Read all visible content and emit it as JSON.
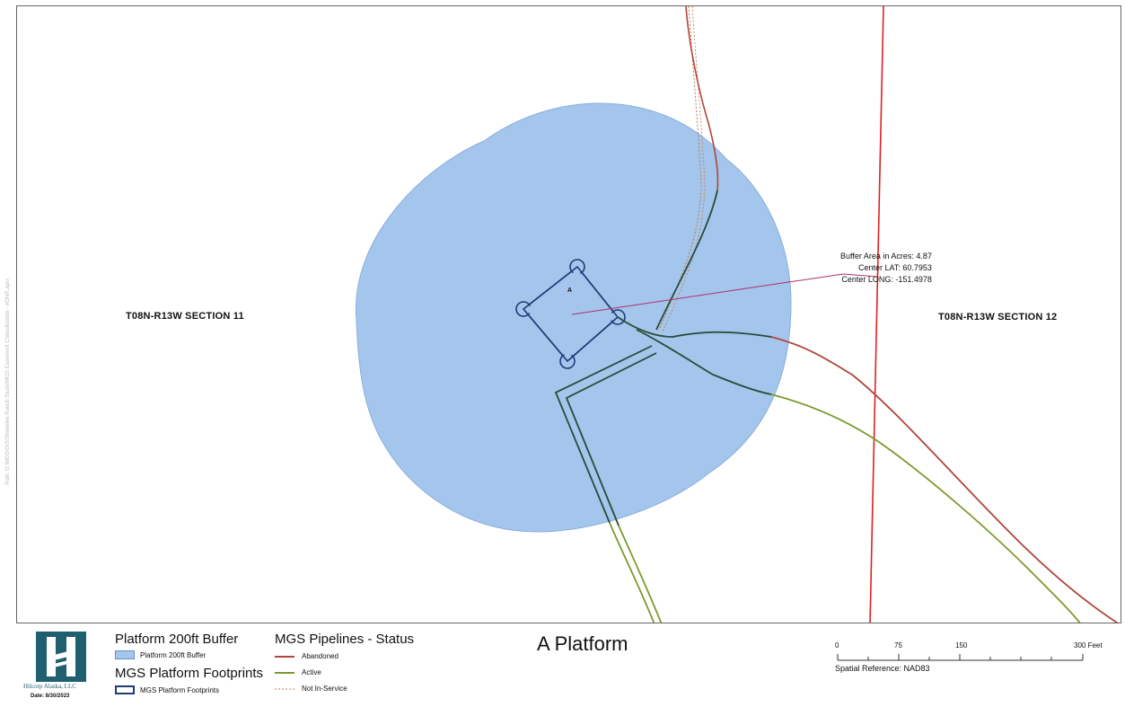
{
  "map": {
    "sections": {
      "left": "T08N-R13W SECTION 11",
      "right": "T08N-R13W SECTION 12"
    },
    "platform_marker": "A",
    "callout": {
      "area": "Buffer Area in Acres: 4.87",
      "lat": "Center LAT: 60.7953",
      "long": "Center LONG: -151.4978"
    },
    "side_path_text": "Path: G:\\MGS\\GIS\\Shoreline Ranch Study\\MGS Easement Consolidation - ADNR.aprx"
  },
  "colors": {
    "buffer_fill": "#a4c6ec",
    "abandoned": "#b0463a",
    "active": "#7a9a2e",
    "not_in_service": "#c07850",
    "section_line": "#e02020",
    "footprint": "#1e3c78",
    "logo": "#1f5f6f"
  },
  "legend": {
    "buffer_heading": "Platform 200ft Buffer",
    "buffer_item": "Platform 200ft Buffer",
    "footprint_heading": "MGS Platform Footprints",
    "footprint_item": "MGS Platform Footprints",
    "pipelines_heading": "MGS Pipelines - Status",
    "status": [
      "Abandoned",
      "Active",
      "Not In-Service"
    ]
  },
  "company": {
    "name": "Hilcorp Alaska, LLC",
    "date": "Date: 8/30/2023"
  },
  "title": "A Platform",
  "scale": {
    "ticks": [
      "0",
      "75",
      "150",
      "300 Feet"
    ],
    "spatial_reference": "Spatial Reference: NAD83"
  }
}
